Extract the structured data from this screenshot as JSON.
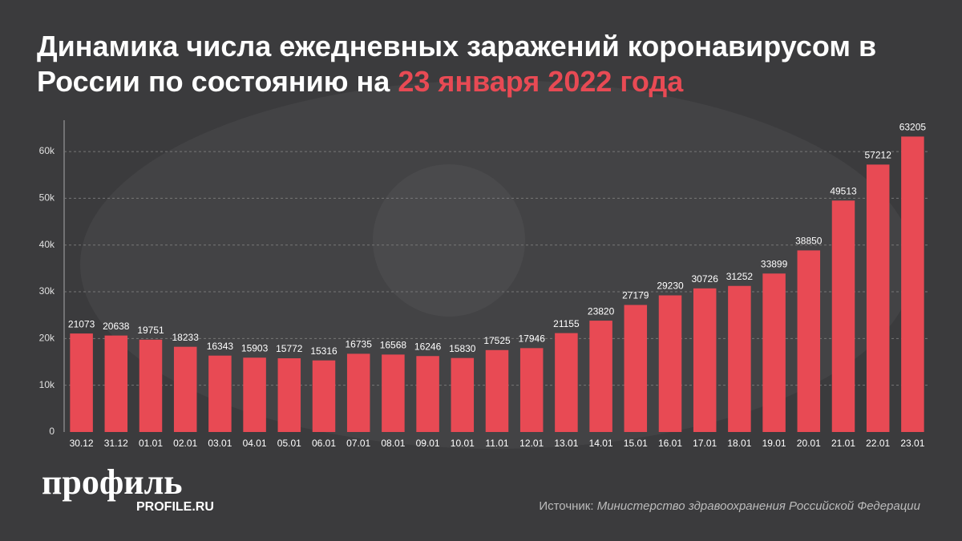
{
  "chart_data": {
    "type": "bar",
    "title": "Динамика числа ежедневных заражений коронавирусом в России по состоянию на",
    "title_date": "23 января 2022 года",
    "categories": [
      "30.12",
      "31.12",
      "01.01",
      "02.01",
      "03.01",
      "04.01",
      "05.01",
      "06.01",
      "07.01",
      "08.01",
      "09.01",
      "10.01",
      "11.01",
      "12.01",
      "13.01",
      "14.01",
      "15.01",
      "16.01",
      "17.01",
      "18.01",
      "19.01",
      "20.01",
      "21.01",
      "22.01",
      "23.01"
    ],
    "values": [
      21073,
      20638,
      19751,
      18233,
      16343,
      15903,
      15772,
      15316,
      16735,
      16568,
      16246,
      15830,
      17525,
      17946,
      21155,
      23820,
      27179,
      29230,
      30726,
      31252,
      33899,
      38850,
      49513,
      57212,
      63205
    ],
    "color": "#e84a54",
    "ylim": [
      0,
      66700
    ],
    "yticks": [
      0,
      {
        "value": 10000,
        "label": "10k"
      },
      {
        "value": 20000,
        "label": "20k"
      },
      {
        "value": 30000,
        "label": "30k"
      },
      {
        "value": 40000,
        "label": "40k"
      },
      {
        "value": 50000,
        "label": "50k"
      },
      {
        "value": 60000,
        "label": "60k"
      }
    ],
    "grid": true,
    "logo": "профиль",
    "logo_site": "PROFILE.RU",
    "source_label": "Источник:",
    "source": "Министерство здравоохранения Российской Федерации"
  }
}
